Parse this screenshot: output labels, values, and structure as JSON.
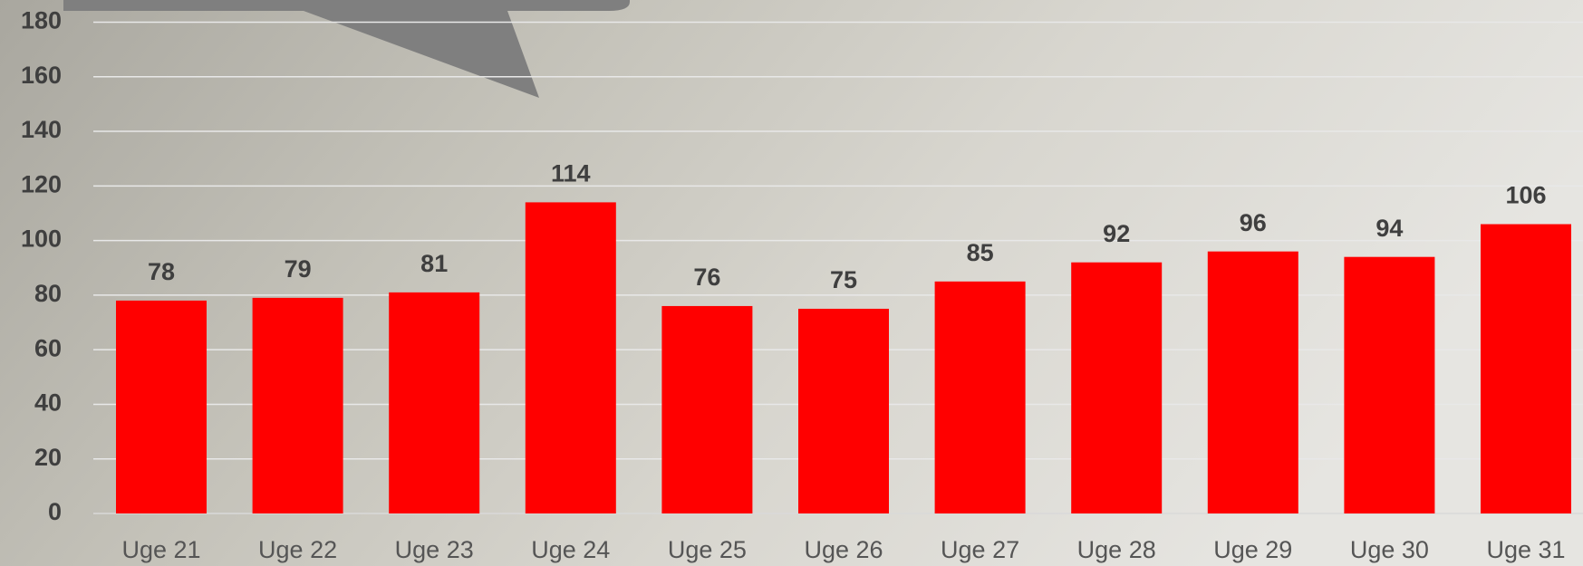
{
  "chart_data": {
    "type": "bar",
    "categories": [
      "Uge 21",
      "Uge 22",
      "Uge 23",
      "Uge 24",
      "Uge 25",
      "Uge 26",
      "Uge 27",
      "Uge 28",
      "Uge 29",
      "Uge 30",
      "Uge 31"
    ],
    "values": [
      78,
      79,
      81,
      114,
      76,
      75,
      85,
      92,
      96,
      94,
      106
    ],
    "color": "#ff0000",
    "ylim": [
      0,
      180
    ],
    "yticks": [
      0,
      20,
      40,
      60,
      80,
      100,
      120,
      140,
      160,
      180
    ],
    "grid": true
  }
}
